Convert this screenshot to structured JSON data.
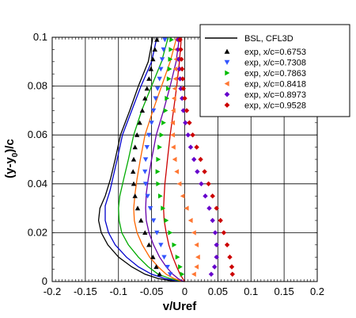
{
  "chart_data": {
    "type": "scatter",
    "xlabel": "v/Uref",
    "ylabel": "(y-y",
    "ylabel_sub": "0",
    "ylabel_tail": ")/c",
    "xlim": [
      -0.2,
      0.2
    ],
    "ylim": [
      0,
      0.1
    ],
    "xticks": [
      "-0.2",
      "-0.15",
      "-0.1",
      "-0.05",
      "0",
      "0.05",
      "0.1",
      "0.15",
      "0.2"
    ],
    "yticks": [
      "0",
      "0.02",
      "0.04",
      "0.06",
      "0.08",
      "0.1"
    ],
    "xtick_values": [
      -0.2,
      -0.15,
      -0.1,
      -0.05,
      0,
      0.05,
      0.1,
      0.15,
      0.2
    ],
    "ytick_values": [
      0,
      0.02,
      0.04,
      0.06,
      0.08,
      0.1
    ],
    "grid": true,
    "legend_position": "top-right",
    "legend_line_label": "BSL, CFL3D",
    "lines": [
      {
        "color": "#000000",
        "points": [
          [
            -0.048,
            0.1
          ],
          [
            -0.055,
            0.09
          ],
          [
            -0.07,
            0.08
          ],
          [
            -0.083,
            0.07
          ],
          [
            -0.097,
            0.06
          ],
          [
            -0.105,
            0.05
          ],
          [
            -0.112,
            0.042
          ],
          [
            -0.12,
            0.035
          ],
          [
            -0.128,
            0.03
          ],
          [
            -0.13,
            0.025
          ],
          [
            -0.126,
            0.02
          ],
          [
            -0.116,
            0.015
          ],
          [
            -0.1,
            0.01
          ],
          [
            -0.08,
            0.006
          ],
          [
            -0.06,
            0.003
          ],
          [
            -0.04,
            0.0012
          ],
          [
            -0.02,
            0.0003
          ],
          [
            0,
            0
          ]
        ]
      },
      {
        "color": "#0000cc",
        "points": [
          [
            -0.042,
            0.1
          ],
          [
            -0.05,
            0.09
          ],
          [
            -0.066,
            0.08
          ],
          [
            -0.08,
            0.07
          ],
          [
            -0.094,
            0.06
          ],
          [
            -0.102,
            0.05
          ],
          [
            -0.108,
            0.043
          ],
          [
            -0.113,
            0.037
          ],
          [
            -0.12,
            0.031
          ],
          [
            -0.12,
            0.025
          ],
          [
            -0.115,
            0.02
          ],
          [
            -0.105,
            0.015
          ],
          [
            -0.088,
            0.01
          ],
          [
            -0.07,
            0.006
          ],
          [
            -0.05,
            0.003
          ],
          [
            -0.03,
            0.0012
          ],
          [
            -0.012,
            0.0003
          ],
          [
            0,
            0
          ]
        ]
      },
      {
        "color": "#00aa00",
        "points": [
          [
            -0.025,
            0.1
          ],
          [
            -0.035,
            0.09
          ],
          [
            -0.05,
            0.08
          ],
          [
            -0.065,
            0.07
          ],
          [
            -0.077,
            0.06
          ],
          [
            -0.085,
            0.05
          ],
          [
            -0.092,
            0.042
          ],
          [
            -0.098,
            0.035
          ],
          [
            -0.1,
            0.03
          ],
          [
            -0.099,
            0.025
          ],
          [
            -0.095,
            0.02
          ],
          [
            -0.085,
            0.015
          ],
          [
            -0.07,
            0.01
          ],
          [
            -0.055,
            0.006
          ],
          [
            -0.04,
            0.003
          ],
          [
            -0.022,
            0.0012
          ],
          [
            -0.008,
            0.0003
          ],
          [
            0,
            0
          ]
        ]
      },
      {
        "color": "#ff6600",
        "points": [
          [
            -0.012,
            0.1
          ],
          [
            -0.022,
            0.09
          ],
          [
            -0.035,
            0.08
          ],
          [
            -0.048,
            0.07
          ],
          [
            -0.06,
            0.06
          ],
          [
            -0.067,
            0.05
          ],
          [
            -0.072,
            0.042
          ],
          [
            -0.075,
            0.036
          ],
          [
            -0.077,
            0.03
          ],
          [
            -0.076,
            0.025
          ],
          [
            -0.072,
            0.02
          ],
          [
            -0.064,
            0.015
          ],
          [
            -0.053,
            0.01
          ],
          [
            -0.04,
            0.006
          ],
          [
            -0.028,
            0.003
          ],
          [
            -0.016,
            0.0012
          ],
          [
            -0.006,
            0.0003
          ],
          [
            0,
            0
          ]
        ]
      },
      {
        "color": "#6600aa",
        "points": [
          [
            -0.008,
            0.1
          ],
          [
            -0.013,
            0.09
          ],
          [
            -0.022,
            0.08
          ],
          [
            -0.032,
            0.07
          ],
          [
            -0.043,
            0.06
          ],
          [
            -0.05,
            0.05
          ],
          [
            -0.055,
            0.042
          ],
          [
            -0.058,
            0.036
          ],
          [
            -0.059,
            0.03
          ],
          [
            -0.058,
            0.025
          ],
          [
            -0.054,
            0.02
          ],
          [
            -0.047,
            0.015
          ],
          [
            -0.038,
            0.01
          ],
          [
            -0.028,
            0.006
          ],
          [
            -0.018,
            0.003
          ],
          [
            -0.01,
            0.0012
          ],
          [
            -0.004,
            0.0003
          ],
          [
            0,
            0
          ]
        ]
      },
      {
        "color": "#cc0000",
        "points": [
          [
            -0.005,
            0.1
          ],
          [
            -0.008,
            0.09
          ],
          [
            -0.012,
            0.08
          ],
          [
            -0.017,
            0.07
          ],
          [
            -0.022,
            0.06
          ],
          [
            -0.026,
            0.05
          ],
          [
            -0.028,
            0.045
          ],
          [
            -0.03,
            0.04
          ],
          [
            -0.031,
            0.035
          ],
          [
            -0.032,
            0.03
          ],
          [
            -0.031,
            0.025
          ],
          [
            -0.028,
            0.02
          ],
          [
            -0.024,
            0.015
          ],
          [
            -0.018,
            0.01
          ],
          [
            -0.012,
            0.006
          ],
          [
            -0.007,
            0.003
          ],
          [
            -0.003,
            0.0012
          ],
          [
            0,
            0
          ]
        ]
      }
    ],
    "series": [
      {
        "name": "exp, x/c=0.6753",
        "color": "#000000",
        "marker": "triangle-up",
        "x": [
          -0.042,
          -0.045,
          -0.048,
          -0.051,
          -0.054,
          -0.057,
          -0.06,
          -0.064,
          -0.068,
          -0.072,
          -0.075,
          -0.077,
          -0.078,
          -0.077,
          -0.075,
          -0.071,
          -0.066,
          -0.06,
          -0.054,
          -0.048,
          -0.043,
          -0.038
        ],
        "y": [
          0.099,
          0.095,
          0.091,
          0.087,
          0.083,
          0.079,
          0.075,
          0.07,
          0.065,
          0.06,
          0.055,
          0.05,
          0.045,
          0.04,
          0.035,
          0.03,
          0.025,
          0.02,
          0.015,
          0.01,
          0.006,
          0.003
        ]
      },
      {
        "name": "exp, x/c=0.7308",
        "color": "#3355ff",
        "marker": "triangle-down",
        "x": [
          -0.03,
          -0.032,
          -0.034,
          -0.036,
          -0.038,
          -0.041,
          -0.044,
          -0.047,
          -0.05,
          -0.054,
          -0.057,
          -0.059,
          -0.06,
          -0.059,
          -0.056,
          -0.052,
          -0.047,
          -0.042,
          -0.036,
          -0.031,
          -0.026,
          -0.022
        ],
        "y": [
          0.099,
          0.095,
          0.091,
          0.087,
          0.083,
          0.079,
          0.075,
          0.07,
          0.065,
          0.06,
          0.055,
          0.05,
          0.045,
          0.04,
          0.035,
          0.03,
          0.025,
          0.02,
          0.015,
          0.01,
          0.006,
          0.003
        ]
      },
      {
        "name": "exp, x/c=0.7863",
        "color": "#00bb00",
        "marker": "triangle-right",
        "x": [
          -0.02,
          -0.021,
          -0.022,
          -0.023,
          -0.024,
          -0.025,
          -0.027,
          -0.029,
          -0.032,
          -0.035,
          -0.038,
          -0.04,
          -0.041,
          -0.04,
          -0.037,
          -0.033,
          -0.028,
          -0.022,
          -0.016,
          -0.011,
          -0.007,
          -0.004
        ],
        "y": [
          0.099,
          0.095,
          0.091,
          0.087,
          0.083,
          0.079,
          0.075,
          0.07,
          0.065,
          0.06,
          0.055,
          0.05,
          0.045,
          0.04,
          0.035,
          0.03,
          0.025,
          0.02,
          0.015,
          0.01,
          0.006,
          0.003
        ]
      },
      {
        "name": "exp, x/c=0.8418",
        "color": "#ff7733",
        "marker": "triangle-left",
        "x": [
          -0.012,
          -0.013,
          -0.013,
          -0.014,
          -0.014,
          -0.015,
          -0.016,
          -0.017,
          -0.018,
          -0.018,
          -0.017,
          -0.015,
          -0.012,
          -0.008,
          -0.003,
          0.003,
          0.009,
          0.014,
          0.018,
          0.02,
          0.018,
          0.014
        ],
        "y": [
          0.099,
          0.095,
          0.091,
          0.087,
          0.083,
          0.079,
          0.075,
          0.07,
          0.065,
          0.06,
          0.055,
          0.05,
          0.045,
          0.04,
          0.035,
          0.03,
          0.025,
          0.02,
          0.015,
          0.01,
          0.006,
          0.003
        ]
      },
      {
        "name": "exp, x/c=0.8973",
        "color": "#6600cc",
        "marker": "diamond",
        "x": [
          -0.01,
          -0.01,
          -0.009,
          -0.008,
          -0.007,
          -0.006,
          -0.004,
          -0.002,
          0.001,
          0.005,
          0.009,
          0.014,
          0.019,
          0.025,
          0.031,
          0.037,
          0.042,
          0.046,
          0.048,
          0.048,
          0.045,
          0.04
        ],
        "y": [
          0.099,
          0.095,
          0.091,
          0.087,
          0.083,
          0.079,
          0.075,
          0.07,
          0.065,
          0.06,
          0.055,
          0.05,
          0.045,
          0.04,
          0.035,
          0.03,
          0.025,
          0.02,
          0.015,
          0.01,
          0.006,
          0.003
        ]
      },
      {
        "name": "exp, x/c=0.9528",
        "color": "#cc0000",
        "marker": "diamond",
        "x": [
          -0.007,
          -0.006,
          -0.005,
          -0.004,
          -0.003,
          -0.002,
          0.0,
          0.003,
          0.007,
          0.012,
          0.018,
          0.024,
          0.03,
          0.036,
          0.042,
          0.048,
          0.054,
          0.059,
          0.064,
          0.068,
          0.071,
          0.072
        ],
        "y": [
          0.099,
          0.095,
          0.091,
          0.087,
          0.083,
          0.079,
          0.075,
          0.07,
          0.065,
          0.06,
          0.055,
          0.05,
          0.045,
          0.04,
          0.035,
          0.03,
          0.025,
          0.02,
          0.015,
          0.01,
          0.006,
          0.003
        ]
      }
    ]
  }
}
